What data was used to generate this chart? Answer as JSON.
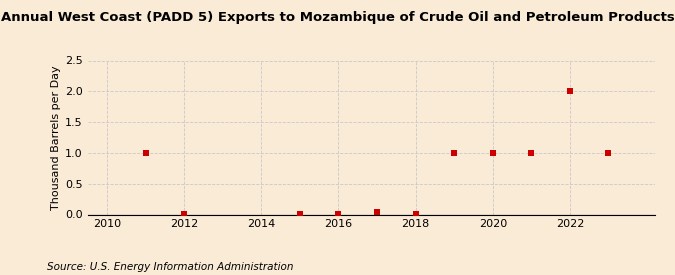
{
  "title": "Annual West Coast (PADD 5) Exports to Mozambique of Crude Oil and Petroleum Products",
  "ylabel": "Thousand Barrels per Day",
  "source": "Source: U.S. Energy Information Administration",
  "background_color": "#faebd7",
  "plot_background_color": "#faebd7",
  "data_x": [
    2011,
    2012,
    2015,
    2016,
    2017,
    2018,
    2019,
    2020,
    2021,
    2022,
    2023
  ],
  "data_y": [
    1.0,
    0.01,
    0.01,
    0.01,
    0.04,
    0.01,
    1.0,
    1.0,
    1.0,
    2.0,
    1.0
  ],
  "marker_color": "#cc0000",
  "marker_size": 4,
  "xlim": [
    2009.5,
    2024.2
  ],
  "ylim": [
    0.0,
    2.5
  ],
  "xticks": [
    2010,
    2012,
    2014,
    2016,
    2018,
    2020,
    2022
  ],
  "yticks": [
    0.0,
    0.5,
    1.0,
    1.5,
    2.0,
    2.5
  ],
  "grid_color": "#c8c8c8",
  "vline_color": "#c8c8c8",
  "vlines": [
    2010,
    2012,
    2014,
    2016,
    2018,
    2020,
    2022
  ],
  "title_fontsize": 9.5,
  "axis_fontsize": 8,
  "source_fontsize": 7.5
}
